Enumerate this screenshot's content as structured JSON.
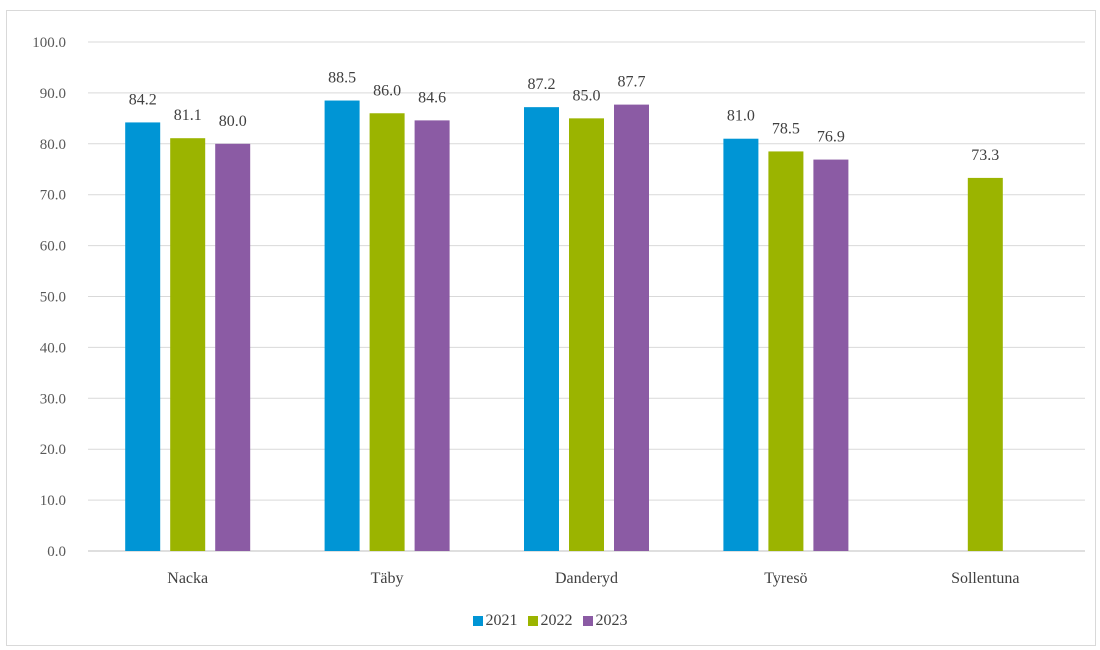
{
  "chart_data": {
    "type": "bar",
    "title": "",
    "xlabel": "",
    "ylabel": "",
    "categories": [
      "Nacka",
      "Täby",
      "Danderyd",
      "Tyresö",
      "Sollentuna"
    ],
    "series": [
      {
        "name": "2021",
        "color": "#0095d5",
        "values": [
          84.2,
          88.5,
          87.2,
          81.0,
          null
        ],
        "labels": [
          "84.2",
          "88.5",
          "87.2",
          "81.0",
          null
        ]
      },
      {
        "name": "2022",
        "color": "#9bb400",
        "values": [
          81.1,
          86.0,
          85.0,
          78.5,
          73.3
        ],
        "labels": [
          "81.1",
          "86.0",
          "85.0",
          "78.5",
          "73.3"
        ]
      },
      {
        "name": "2023",
        "color": "#8b5ba4",
        "values": [
          80.0,
          84.6,
          87.7,
          76.9,
          null
        ],
        "labels": [
          "80.0",
          "84.6",
          "87.7",
          "76.9",
          null
        ]
      }
    ],
    "ylim": [
      0,
      100
    ],
    "yticks": [
      "0.0",
      "10.0",
      "20.0",
      "30.0",
      "40.0",
      "50.0",
      "60.0",
      "70.0",
      "80.0",
      "90.0",
      "100.0"
    ],
    "grid": true,
    "legend": "bottom"
  }
}
